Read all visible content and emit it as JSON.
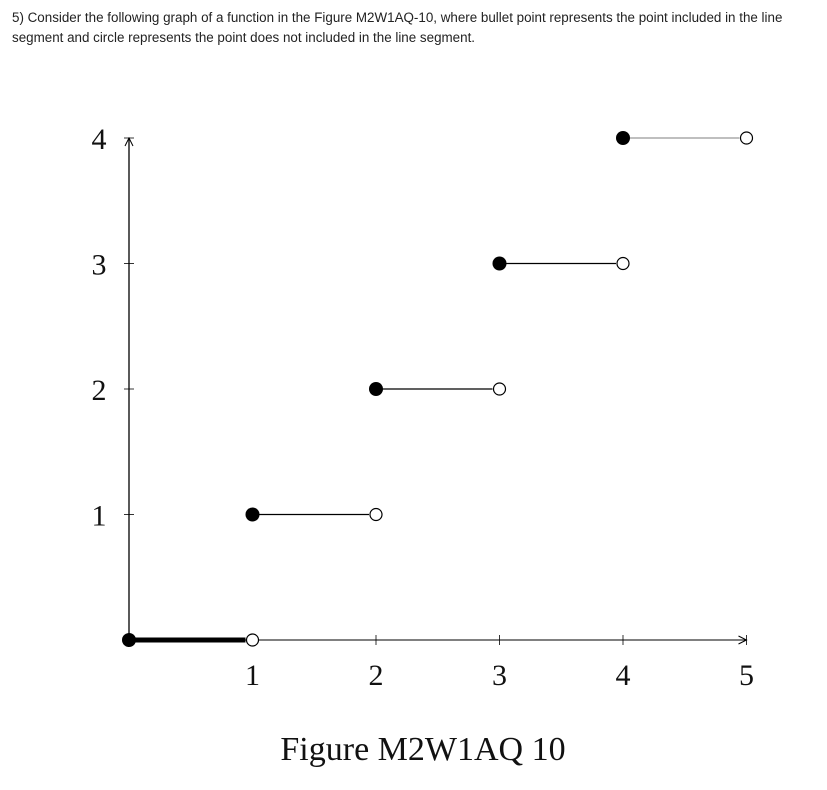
{
  "question": {
    "text": "5) Consider the following graph of a function in the Figure M2W1AQ-10, where bullet point represents the point included in the line segment and circle represents the point does not included in the line segment."
  },
  "chart_data": {
    "type": "line",
    "title": "",
    "caption": "Figure M2W1AQ 10",
    "xlabel": "",
    "ylabel": "",
    "xlim": [
      0,
      5
    ],
    "ylim": [
      0,
      4
    ],
    "x_ticks": [
      "1",
      "2",
      "3",
      "4",
      "5"
    ],
    "y_ticks": [
      "1",
      "2",
      "3",
      "4"
    ],
    "grid": false,
    "segments": [
      {
        "x_start": 0,
        "x_end": 1,
        "y": 0,
        "start": "closed",
        "end": "open"
      },
      {
        "x_start": 1,
        "x_end": 2,
        "y": 1,
        "start": "closed",
        "end": "open"
      },
      {
        "x_start": 2,
        "x_end": 3,
        "y": 2,
        "start": "closed",
        "end": "open"
      },
      {
        "x_start": 3,
        "x_end": 4,
        "y": 3,
        "start": "closed",
        "end": "open"
      },
      {
        "x_start": 4,
        "x_end": 5,
        "y": 4,
        "start": "closed",
        "end": "open"
      }
    ],
    "colors": {
      "axis": "#000000",
      "line": "#000000",
      "top_line": "#aaaaaa"
    }
  }
}
